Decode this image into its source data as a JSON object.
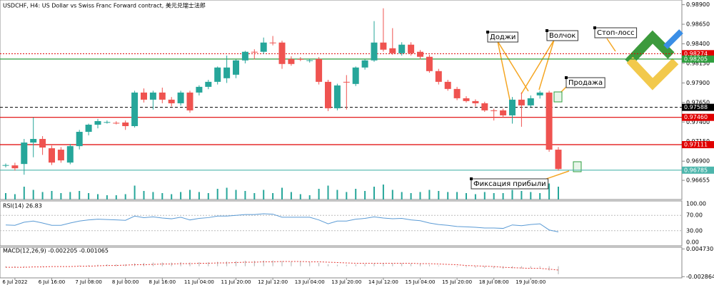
{
  "chart_data": [
    {
      "type": "candlestick",
      "title": "USDCHF, H4:  US Dollar vs Swiss Franc Forward contract, 美元兑瑞士法郎",
      "up_color": "#26a69a",
      "down_color": "#ef5350",
      "volume_color": "#26a69a",
      "x": [
        null,
        "6 Jul 2022",
        null,
        null,
        null,
        "6 Jul 16:00",
        null,
        null,
        null,
        "7 Jul 08:00",
        null,
        null,
        null,
        "8 Jul 00:00",
        null,
        null,
        null,
        "8 Jul 16:00",
        null,
        null,
        null,
        "11 Jul 04:00",
        null,
        null,
        null,
        "11 Jul 20:00",
        null,
        null,
        null,
        "12 Jul 12:00",
        null,
        null,
        null,
        "13 Jul 04:00",
        null,
        null,
        null,
        "13 Jul 20:00",
        null,
        null,
        null,
        "14 Jul 12:00",
        null,
        null,
        null,
        "15 Jul 04:00",
        null,
        null,
        null,
        "15 Jul 20:00",
        null,
        null,
        null,
        "18 Jul 08:00",
        null,
        null,
        null,
        "19 Jul 00:00",
        null,
        null,
        null
      ],
      "ohlc": [
        [
          0.96846,
          0.9687,
          0.9682,
          0.9685
        ],
        [
          0.96846,
          0.9688,
          0.9678,
          0.96809
        ],
        [
          0.96864,
          0.97184,
          0.96727,
          0.97138
        ],
        [
          0.97138,
          0.97458,
          0.9695,
          0.97184
        ],
        [
          0.97184,
          0.9722,
          0.9698,
          0.97074
        ],
        [
          0.97065,
          0.971,
          0.9685,
          0.96882
        ],
        [
          0.97047,
          0.9708,
          0.9688,
          0.9691
        ],
        [
          0.96882,
          0.9712,
          0.9686,
          0.97092
        ],
        [
          0.97092,
          0.973,
          0.9705,
          0.97275
        ],
        [
          0.97275,
          0.9738,
          0.9723,
          0.97366
        ],
        [
          0.97366,
          0.9744,
          0.9732,
          0.97412
        ],
        [
          0.97394,
          0.9742,
          0.9738,
          0.974
        ],
        [
          0.9739,
          0.9741,
          0.9737,
          0.97385
        ],
        [
          0.97394,
          0.9742,
          0.973,
          0.97348
        ],
        [
          0.97348,
          0.978,
          0.9733,
          0.97777
        ],
        [
          0.97777,
          0.9783,
          0.9765,
          0.97686
        ],
        [
          0.97686,
          0.978,
          0.9756,
          0.97777
        ],
        [
          0.97777,
          0.9784,
          0.9764,
          0.97686
        ],
        [
          0.97686,
          0.9772,
          0.976,
          0.9764
        ],
        [
          0.9764,
          0.978,
          0.9761,
          0.97777
        ],
        [
          0.97777,
          0.978,
          0.9752,
          0.97549
        ],
        [
          0.97777,
          0.9787,
          0.9774,
          0.9785
        ],
        [
          0.9785,
          0.9794,
          0.9782,
          0.97914
        ],
        [
          0.97914,
          0.9811,
          0.9788,
          0.98097
        ],
        [
          0.9796,
          0.9825,
          0.979,
          0.98097
        ],
        [
          0.98005,
          0.982,
          0.9796,
          0.98188
        ],
        [
          0.98188,
          0.9831,
          0.9815,
          0.98298
        ],
        [
          0.98298,
          0.9833,
          0.982,
          0.9829
        ],
        [
          0.98298,
          0.9848,
          0.9827,
          0.98416
        ],
        [
          0.98416,
          0.985,
          0.9838,
          0.9841
        ],
        [
          0.98416,
          0.9844,
          0.9808,
          0.98142
        ],
        [
          0.98206,
          0.9824,
          0.9812,
          0.98142
        ],
        [
          0.98206,
          0.9823,
          0.9818,
          0.982
        ],
        [
          0.98188,
          0.9821,
          0.9816,
          0.9819
        ],
        [
          0.98206,
          0.9823,
          0.9788,
          0.97914
        ],
        [
          0.97914,
          0.9794,
          0.9754,
          0.97576
        ],
        [
          0.97576,
          0.9789,
          0.9755,
          0.97868
        ],
        [
          0.97914,
          0.98,
          0.9756,
          0.9791
        ],
        [
          0.97887,
          0.9811,
          0.9786,
          0.98097
        ],
        [
          0.98097,
          0.982,
          0.9807,
          0.98188
        ],
        [
          0.98188,
          0.9869,
          0.9817,
          0.98416
        ],
        [
          0.98416,
          0.98854,
          0.983,
          0.98325
        ],
        [
          0.98343,
          0.986,
          0.9826,
          0.98279
        ],
        [
          0.98279,
          0.9842,
          0.9825,
          0.98389
        ],
        [
          0.98389,
          0.9842,
          0.9825,
          0.98279
        ],
        [
          0.98298,
          0.9832,
          0.982,
          0.98234
        ],
        [
          0.98234,
          0.9826,
          0.9803,
          0.98051
        ],
        [
          0.98051,
          0.9808,
          0.9788,
          0.97914
        ],
        [
          0.97914,
          0.9794,
          0.978,
          0.97823
        ],
        [
          0.97823,
          0.9785,
          0.9768,
          0.97704
        ],
        [
          0.97704,
          0.9773,
          0.9765,
          0.97668
        ],
        [
          0.97668,
          0.9769,
          0.976,
          0.9764
        ],
        [
          0.9764,
          0.9766,
          0.9753,
          0.97549
        ],
        [
          0.97549,
          0.9757,
          0.9742,
          0.97545
        ],
        [
          0.97549,
          0.9757,
          0.9746,
          0.97485
        ],
        [
          0.97485,
          0.9772,
          0.9738,
          0.97686
        ],
        [
          0.97686,
          0.9778,
          0.9734,
          0.97613
        ],
        [
          0.97613,
          0.9774,
          0.9759,
          0.97704
        ],
        [
          0.97741,
          0.978,
          0.977,
          0.97777
        ],
        [
          0.97777,
          0.978,
          0.9702,
          0.97047
        ],
        [
          0.97047,
          0.9708,
          0.9678,
          0.968
        ]
      ],
      "volume": [
        3000,
        2500,
        6000,
        4500,
        3500,
        4000,
        3000,
        3500,
        4000,
        3000,
        2500,
        2000,
        2000,
        2500,
        6500,
        4000,
        3500,
        3000,
        2500,
        3500,
        4500,
        3500,
        3000,
        5000,
        5500,
        4500,
        4000,
        3000,
        4500,
        3000,
        5500,
        3500,
        2500,
        2000,
        5000,
        6500,
        4500,
        3500,
        5000,
        4000,
        6000,
        7000,
        4500,
        3500,
        3000,
        3500,
        4500,
        4000,
        3500,
        3500,
        3000,
        2500,
        3500,
        3000,
        3000,
        4500,
        4000,
        3500,
        3000,
        7500,
        6000
      ],
      "volume_lim": [
        0,
        10000
      ],
      "ylim": [
        0.9641,
        0.9896
      ],
      "yticks": [
        {
          "value": 0.989,
          "label": "0.98900"
        },
        {
          "value": 0.9865,
          "label": "0.98650"
        },
        {
          "value": 0.984,
          "label": "0.98400"
        },
        {
          "value": 0.9815,
          "label": "0.98150"
        },
        {
          "value": 0.979,
          "label": "0.97900"
        },
        {
          "value": 0.9765,
          "label": "0.97650"
        },
        {
          "value": 0.974,
          "label": "0.97400"
        },
        {
          "value": 0.9715,
          "label": "0.97150"
        },
        {
          "value": 0.969,
          "label": "0.96900"
        },
        0.96655
      ],
      "levels": [
        {
          "value": 0.98274,
          "color": "#e00000",
          "style": "dotted"
        },
        {
          "value": 0.98205,
          "color": "#2e9e3e",
          "style": "solid"
        },
        {
          "value": 0.97588,
          "color": "#000000",
          "style": "dashed"
        },
        {
          "value": 0.9746,
          "label": "0.97460",
          "color": "#e00000",
          "style": "solid"
        },
        {
          "value": 0.97111,
          "color": "#e00000",
          "style": "solid"
        },
        {
          "value": 0.96785,
          "color": "#4db6ac",
          "style": "solid"
        }
      ],
      "annotations": [
        "Доджи",
        "Волчок",
        "Стоп-лосс",
        "Продажа",
        "Фиксация прибыли"
      ]
    },
    {
      "type": "line",
      "title": "RSI(14) 26.83",
      "color": "#5b9bd5",
      "grid": true,
      "values": [
        45,
        44,
        52,
        55,
        50,
        44,
        44,
        50,
        55,
        58,
        60,
        59,
        58,
        57,
        68,
        64,
        66,
        63,
        61,
        65,
        58,
        62,
        64,
        68,
        68,
        70,
        72,
        72,
        74,
        73,
        65,
        65,
        65,
        65,
        58,
        48,
        55,
        55,
        60,
        62,
        66,
        63,
        61,
        62,
        58,
        56,
        50,
        46,
        44,
        41,
        40,
        39,
        37,
        37,
        36,
        45,
        43,
        46,
        48,
        32,
        26.83
      ],
      "ylim": [
        0,
        100
      ],
      "yticks": [
        {
          "value": 100,
          "label": "100.00"
        },
        {
          "value": 70,
          "label": "70.00"
        },
        {
          "value": 30,
          "label": "30.00"
        },
        {
          "value": 0,
          "label": "0.00"
        }
      ]
    },
    {
      "type": "macd",
      "title": "MACD(12,26,9) -0.002205 -0.001065",
      "color": "#b0b0b0",
      "signal_color": "#e53935",
      "histogram": [
        -0.0004,
        -0.0004,
        -0.0002,
        0,
        0.0001,
        0,
        -0.0001,
        0,
        0.0002,
        0.0003,
        0.0004,
        0.0005,
        0.0005,
        0.0005,
        0.0008,
        0.0009,
        0.001,
        0.001,
        0.001,
        0.0011,
        0.001,
        0.0011,
        0.0011,
        0.0012,
        0.0013,
        0.0014,
        0.0015,
        0.0015,
        0.0016,
        0.0016,
        0.0014,
        0.0013,
        0.0012,
        0.0011,
        0.0009,
        0.0005,
        0.0004,
        0.0004,
        0.0005,
        0.0006,
        0.0008,
        0.0008,
        0.0008,
        0.0008,
        0.0007,
        0.0006,
        0.0004,
        0.0002,
        0,
        -0.0002,
        -0.0003,
        -0.0004,
        -0.0005,
        -0.0006,
        -0.0007,
        -0.0006,
        -0.0006,
        -0.0005,
        -0.0004,
        -0.0012,
        -0.002205
      ],
      "signal": [
        -0.0003,
        -0.0003,
        -0.0003,
        -0.0002,
        -0.0002,
        -0.0001,
        -0.0001,
        -0.0001,
        0,
        0,
        0.0001,
        0.0002,
        0.0002,
        0.0003,
        0.0004,
        0.0004,
        0.0005,
        0.0006,
        0.0006,
        0.0007,
        0.0007,
        0.0008,
        0.0008,
        0.0009,
        0.0009,
        0.001,
        0.0011,
        0.0011,
        0.0012,
        0.0012,
        0.0013,
        0.0013,
        0.0013,
        0.0012,
        0.0012,
        0.0011,
        0.001,
        0.0009,
        0.0008,
        0.0008,
        0.0008,
        0.0008,
        0.0008,
        0.0008,
        0.0008,
        0.0007,
        0.0007,
        0.0006,
        0.0005,
        0.0004,
        0.0002,
        0.0001,
        0,
        -0.0001,
        -0.0003,
        -0.0004,
        -0.0005,
        -0.0006,
        -0.0006,
        -0.0008,
        -0.001065
      ],
      "ylim": [
        -0.0032,
        0.005
      ],
      "yticks": [
        {
          "value": 0.00473,
          "label": "0.004730"
        },
        -0.002864
      ]
    }
  ]
}
